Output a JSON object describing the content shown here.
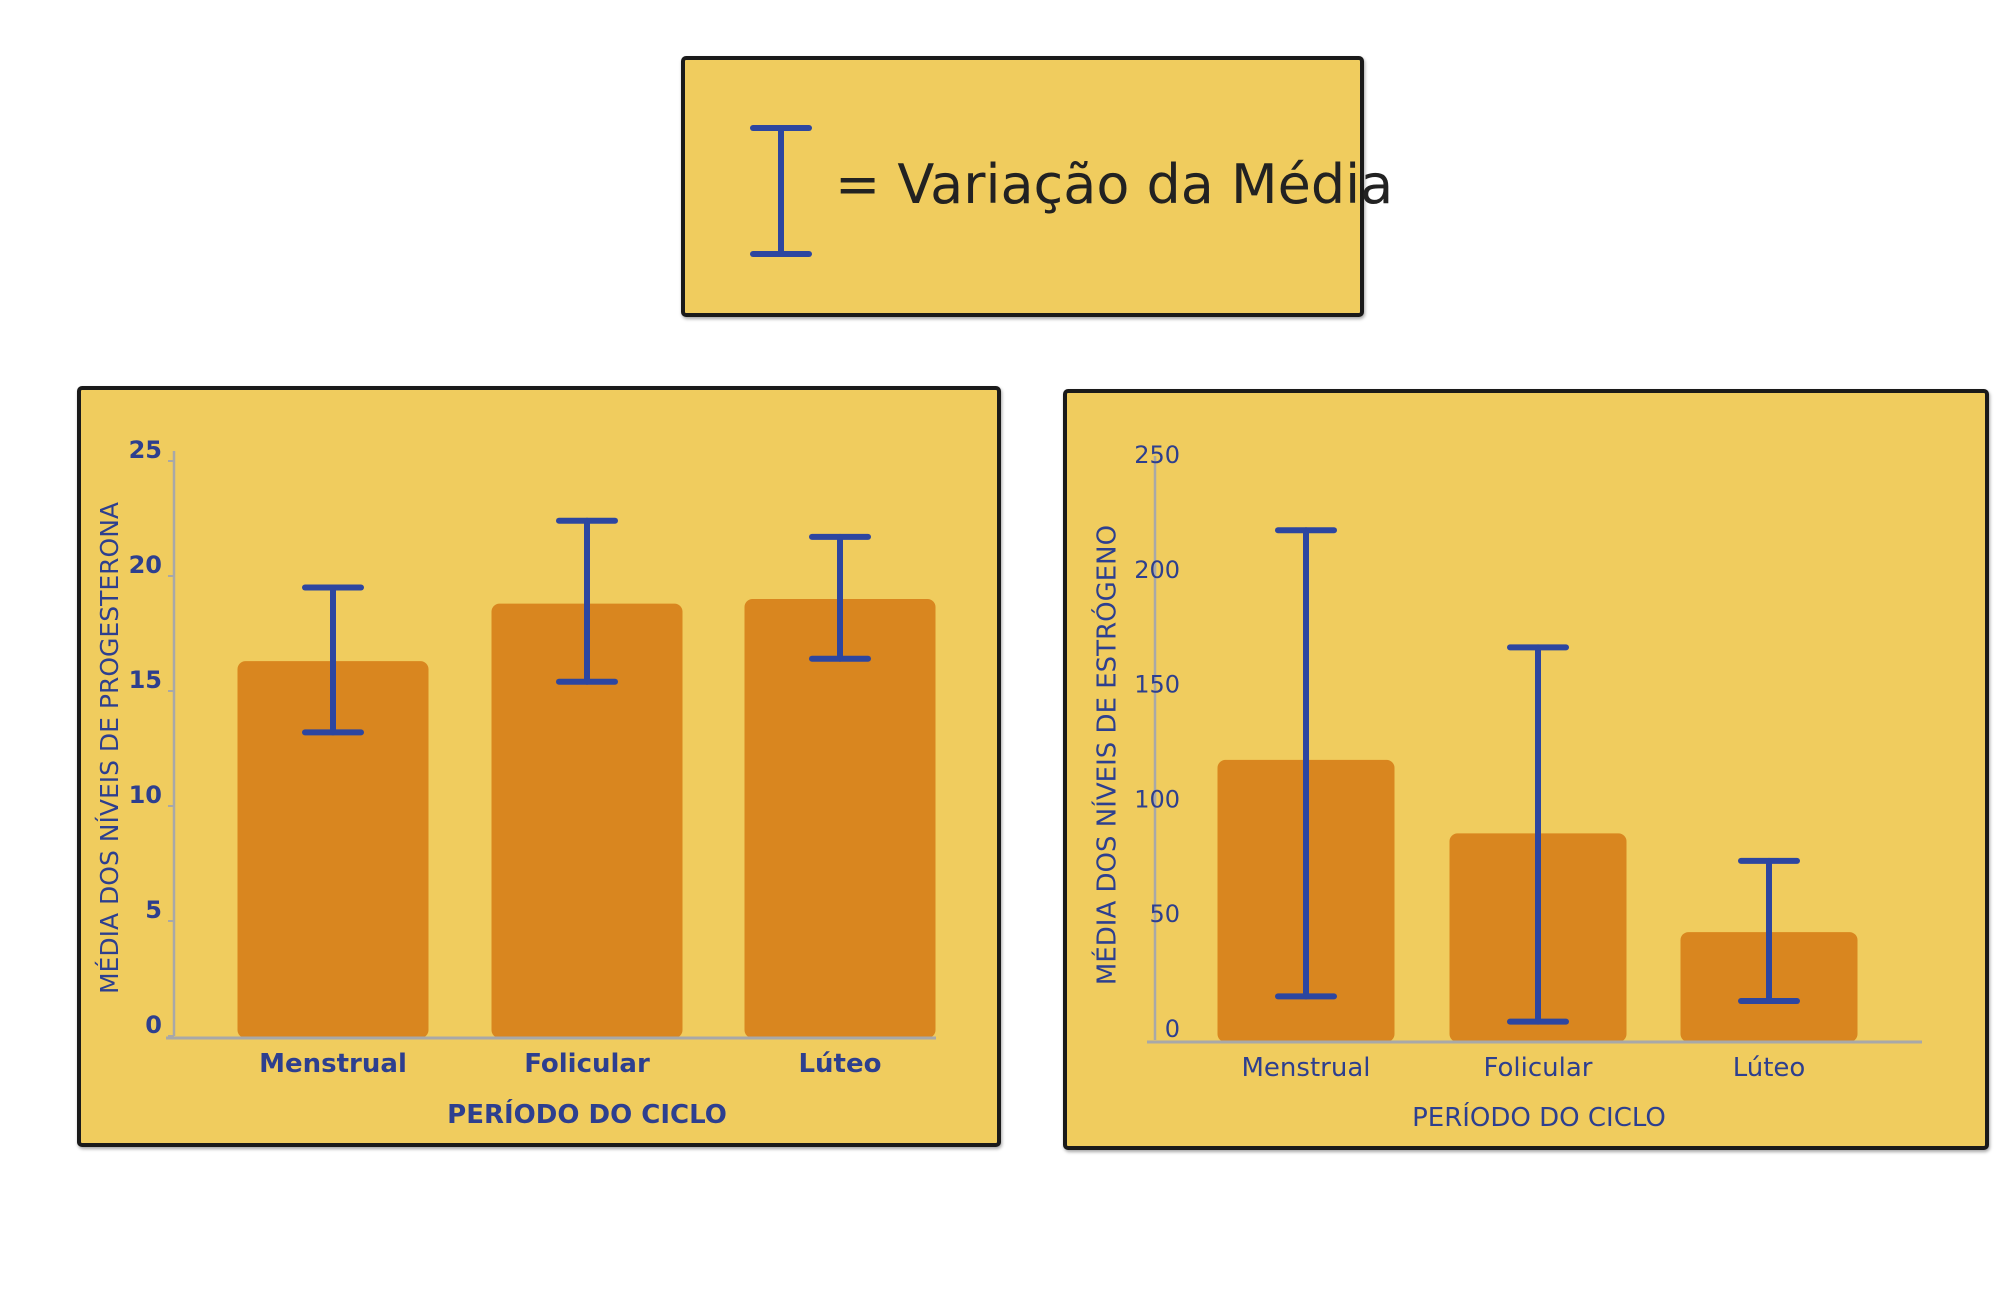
{
  "legend": {
    "text": "= Variação da Média"
  },
  "colors": {
    "panel_bg": "#f0cc5e",
    "bar": "#d9861f",
    "error_bar": "#2d46a0",
    "axis_text": "#2d3f8f",
    "axis_line": "#a8a8a8",
    "border": "#1a1a1a"
  },
  "chart_data": [
    {
      "type": "bar",
      "title": "",
      "xlabel": "PERÍODO DO CICLO",
      "ylabel": "MÉDIA DOS NÍVEIS DE PROGESTERONA",
      "categories": [
        "Menstrual",
        "Folicular",
        "Lúteo"
      ],
      "values": [
        16.3,
        18.8,
        19.0
      ],
      "error_low": [
        13.2,
        15.4,
        16.4
      ],
      "error_high": [
        19.5,
        22.4,
        21.7
      ],
      "ylim": [
        0,
        25
      ],
      "yticks": [
        0,
        5,
        10,
        15,
        20,
        25
      ],
      "grid": false
    },
    {
      "type": "bar",
      "title": "",
      "xlabel": "PERÍODO DO CICLO",
      "ylabel": "MÉDIA DOS NÍVEIS DE ESTRÓGENO",
      "categories": [
        "Menstrual",
        "Folicular",
        "Lúteo"
      ],
      "values": [
        122,
        90,
        47
      ],
      "error_low": [
        19,
        8,
        17
      ],
      "error_high": [
        222,
        171,
        78
      ],
      "ylim": [
        0,
        250
      ],
      "yticks": [
        0,
        50,
        100,
        150,
        200,
        250
      ],
      "grid": false
    }
  ]
}
